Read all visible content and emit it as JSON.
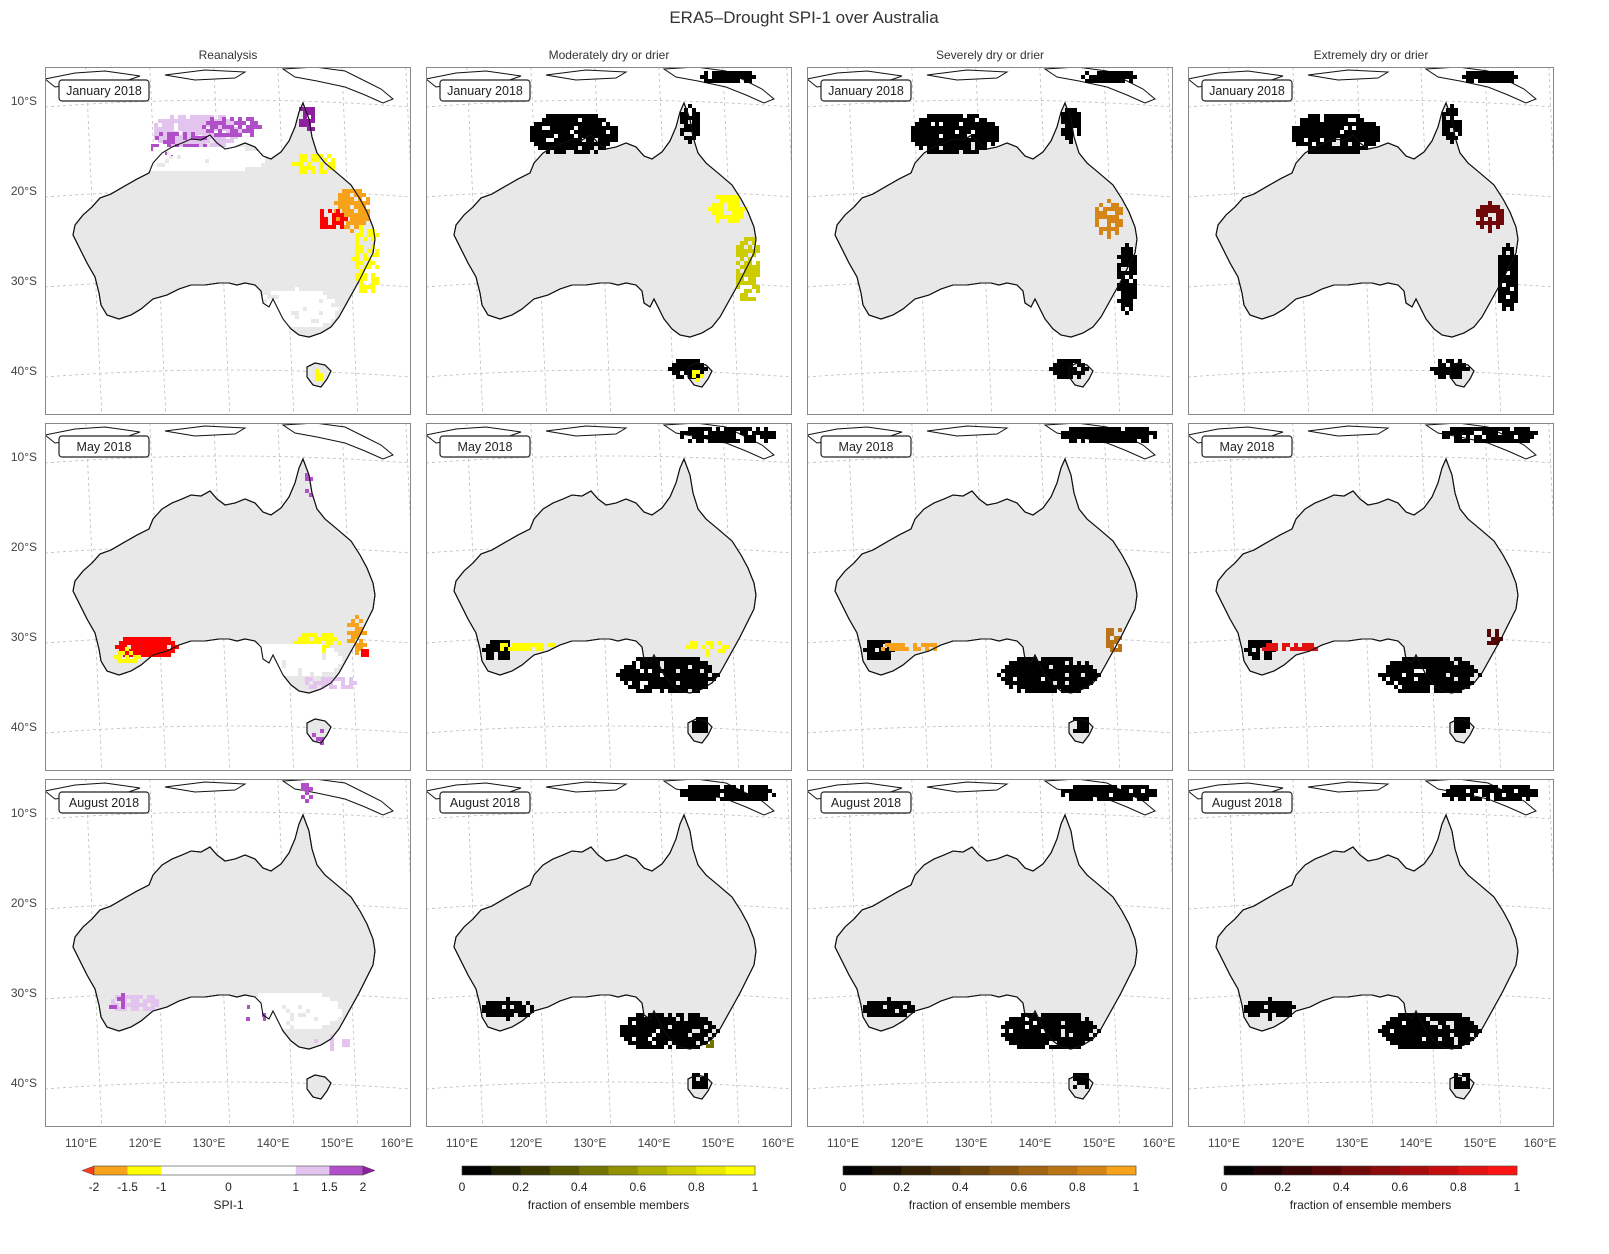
{
  "title": "ERA5–Drought SPI-1 over Australia",
  "columns": [
    {
      "title": "Reanalysis",
      "kind": "spi"
    },
    {
      "title": "Moderately dry or drier",
      "kind": "moderate"
    },
    {
      "title": "Severely dry or drier",
      "kind": "severe"
    },
    {
      "title": "Extremely dry or drier",
      "kind": "extreme"
    }
  ],
  "rows": [
    {
      "date": "January 2018"
    },
    {
      "date": "May 2018"
    },
    {
      "date": "August 2018"
    }
  ],
  "lat_ticks": [
    "10°S",
    "20°S",
    "30°S",
    "40°S"
  ],
  "lon_ticks": [
    "110°E",
    "120°E",
    "130°E",
    "140°E",
    "150°E",
    "160°E"
  ],
  "colorbars": [
    {
      "name": "spi",
      "label": "SPI-1",
      "ticks": [
        "-2",
        "-1.5",
        "-1",
        "0",
        "1",
        "1.5",
        "2"
      ],
      "colors": [
        "#f7a21b",
        "#ffff00",
        "#ffffff",
        "#e3c4ef",
        "#b04fc8"
      ],
      "under": "#ff3b1e",
      "over": "#8e1f9e"
    },
    {
      "name": "moderate",
      "label": "fraction of ensemble members",
      "ticks": [
        "0",
        "0.2",
        "0.4",
        "0.6",
        "0.8",
        "1"
      ],
      "colors": [
        "#000000",
        "#1d1d00",
        "#3a3a00",
        "#575700",
        "#747400",
        "#929200",
        "#afaf00",
        "#cccc00",
        "#e9e900",
        "#ffff00"
      ]
    },
    {
      "name": "severe",
      "label": "fraction of ensemble members",
      "ticks": [
        "0",
        "0.2",
        "0.4",
        "0.6",
        "0.8",
        "1"
      ],
      "colors": [
        "#000000",
        "#1a1003",
        "#352106",
        "#4f3109",
        "#6a420c",
        "#85530f",
        "#a06412",
        "#ba7415",
        "#d58518",
        "#f7a21b"
      ]
    },
    {
      "name": "extreme",
      "label": "fraction of ensemble members",
      "ticks": [
        "0",
        "0.2",
        "0.4",
        "0.6",
        "0.8",
        "1"
      ],
      "colors": [
        "#000000",
        "#1c0202",
        "#380404",
        "#540606",
        "#700909",
        "#8d0b0b",
        "#a90d0d",
        "#c50f0f",
        "#e11212",
        "#ff1414"
      ]
    }
  ],
  "map_colors": {
    "land": "#e8e8e8",
    "spi_dry_moderate": "#ffff00",
    "spi_dry_severe": "#f7a21b",
    "spi_dry_extreme": "#ff0000",
    "spi_wet_moderate": "#e3c4ef",
    "spi_wet_severe": "#b04fc8",
    "spi_wet_extreme": "#8e1f9e",
    "spi_near_normal": "#ffffff",
    "ensemble_zero": "#000000"
  }
}
